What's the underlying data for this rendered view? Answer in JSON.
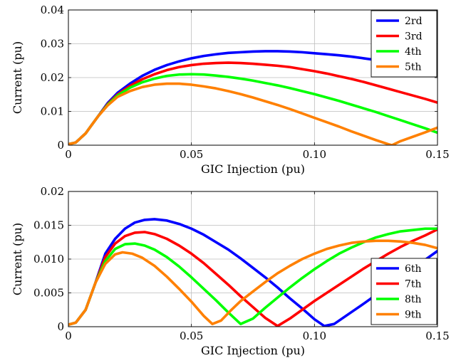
{
  "chart_data": [
    {
      "type": "line",
      "title": "",
      "xlabel": "GIC Injection (pu)",
      "ylabel": "Current (pu)",
      "xlim": [
        0,
        0.15
      ],
      "ylim": [
        0,
        0.04
      ],
      "xticks": [
        0,
        0.05,
        0.1,
        0.15
      ],
      "xtick_labels": [
        "0",
        "0.05",
        "0.10",
        "0.15"
      ],
      "yticks": [
        0,
        0.01,
        0.02,
        0.03,
        0.04
      ],
      "ytick_labels": [
        "0",
        "0.01",
        "0.02",
        "0.03",
        "0.04"
      ],
      "grid": true,
      "legend_position": "top-right",
      "series": [
        {
          "name": "2rd",
          "color": "#0000ff",
          "x": [
            0,
            0.003,
            0.007,
            0.012,
            0.016,
            0.02,
            0.025,
            0.03,
            0.035,
            0.04,
            0.045,
            0.05,
            0.055,
            0.06,
            0.065,
            0.07,
            0.075,
            0.08,
            0.085,
            0.09,
            0.095,
            0.1,
            0.105,
            0.11,
            0.115,
            0.12,
            0.125,
            0.13
          ],
          "y": [
            0.0003,
            0.0008,
            0.0035,
            0.0085,
            0.0125,
            0.0155,
            0.0182,
            0.0205,
            0.0223,
            0.0237,
            0.0248,
            0.0257,
            0.0264,
            0.0269,
            0.0273,
            0.0275,
            0.0277,
            0.0278,
            0.0278,
            0.0277,
            0.0275,
            0.0272,
            0.0269,
            0.0266,
            0.0262,
            0.0257,
            0.0252,
            0.0246
          ]
        },
        {
          "name": "3rd",
          "color": "#ff0000",
          "x": [
            0,
            0.003,
            0.007,
            0.012,
            0.016,
            0.02,
            0.025,
            0.03,
            0.035,
            0.04,
            0.045,
            0.05,
            0.055,
            0.06,
            0.065,
            0.07,
            0.075,
            0.08,
            0.085,
            0.09,
            0.095,
            0.1,
            0.105,
            0.11,
            0.115,
            0.12,
            0.125,
            0.13,
            0.135,
            0.14,
            0.145,
            0.15
          ],
          "y": [
            0.0003,
            0.0008,
            0.0035,
            0.0085,
            0.0122,
            0.015,
            0.0175,
            0.0195,
            0.021,
            0.0222,
            0.0231,
            0.0237,
            0.0241,
            0.0243,
            0.0244,
            0.0243,
            0.0241,
            0.0238,
            0.0235,
            0.0231,
            0.0225,
            0.0219,
            0.0212,
            0.0204,
            0.0196,
            0.0187,
            0.0177,
            0.0167,
            0.0157,
            0.0147,
            0.0137,
            0.0126
          ]
        },
        {
          "name": "4th",
          "color": "#00ff00",
          "x": [
            0,
            0.003,
            0.007,
            0.012,
            0.016,
            0.02,
            0.025,
            0.03,
            0.035,
            0.04,
            0.045,
            0.05,
            0.055,
            0.06,
            0.065,
            0.07,
            0.075,
            0.08,
            0.085,
            0.09,
            0.095,
            0.1,
            0.105,
            0.11,
            0.115,
            0.12,
            0.125,
            0.13,
            0.135,
            0.14,
            0.145,
            0.15
          ],
          "y": [
            0.0003,
            0.0008,
            0.0035,
            0.0085,
            0.012,
            0.0147,
            0.017,
            0.0186,
            0.0197,
            0.0205,
            0.0209,
            0.021,
            0.0209,
            0.0206,
            0.0202,
            0.0197,
            0.0191,
            0.0184,
            0.0177,
            0.0169,
            0.016,
            0.0151,
            0.0141,
            0.0131,
            0.012,
            0.0109,
            0.0098,
            0.0086,
            0.0074,
            0.0062,
            0.005,
            0.0037
          ]
        },
        {
          "name": "5th",
          "color": "#ff8000",
          "x": [
            0,
            0.003,
            0.007,
            0.012,
            0.016,
            0.02,
            0.025,
            0.03,
            0.035,
            0.04,
            0.045,
            0.05,
            0.055,
            0.06,
            0.065,
            0.07,
            0.075,
            0.08,
            0.085,
            0.09,
            0.095,
            0.1,
            0.105,
            0.11,
            0.115,
            0.12,
            0.125,
            0.13,
            0.1315,
            0.135,
            0.14,
            0.145,
            0.15
          ],
          "y": [
            0.0003,
            0.0008,
            0.0035,
            0.0085,
            0.0118,
            0.0143,
            0.016,
            0.0172,
            0.0179,
            0.0182,
            0.0182,
            0.0179,
            0.0174,
            0.0168,
            0.016,
            0.0151,
            0.0141,
            0.013,
            0.0119,
            0.0107,
            0.0094,
            0.0081,
            0.0068,
            0.0055,
            0.0041,
            0.0028,
            0.0015,
            0.0003,
            0.0,
            0.0012,
            0.0025,
            0.0038,
            0.0052
          ]
        }
      ]
    },
    {
      "type": "line",
      "title": "",
      "xlabel": "GIC Injection (pu)",
      "ylabel": "Current (pu)",
      "xlim": [
        0,
        0.15
      ],
      "ylim": [
        0,
        0.02
      ],
      "xticks": [
        0,
        0.05,
        0.1,
        0.15
      ],
      "xtick_labels": [
        "0",
        "0.05",
        "0.10",
        "0.15"
      ],
      "yticks": [
        0,
        0.005,
        0.01,
        0.015,
        0.02
      ],
      "ytick_labels": [
        "0",
        "0.005",
        "0.010",
        "0.015",
        "0.02"
      ],
      "grid": true,
      "legend_position": "bottom-right",
      "series": [
        {
          "name": "6th",
          "color": "#0000ff",
          "x": [
            0,
            0.003,
            0.007,
            0.011,
            0.015,
            0.019,
            0.023,
            0.027,
            0.031,
            0.035,
            0.04,
            0.045,
            0.05,
            0.055,
            0.06,
            0.065,
            0.07,
            0.075,
            0.08,
            0.085,
            0.09,
            0.095,
            0.1,
            0.104,
            0.108,
            0.112,
            0.116,
            0.12,
            0.125,
            0.13,
            0.135,
            0.14,
            0.145,
            0.15
          ],
          "y": [
            0.0003,
            0.0006,
            0.0025,
            0.0065,
            0.0108,
            0.013,
            0.0145,
            0.0154,
            0.0158,
            0.0159,
            0.0157,
            0.0152,
            0.0145,
            0.0136,
            0.0125,
            0.0114,
            0.0101,
            0.0087,
            0.0073,
            0.0058,
            0.0042,
            0.0027,
            0.0011,
            0.0001,
            0.0004,
            0.0014,
            0.0024,
            0.0034,
            0.0047,
            0.006,
            0.0073,
            0.0086,
            0.0099,
            0.0112
          ]
        },
        {
          "name": "7th",
          "color": "#ff0000",
          "x": [
            0,
            0.003,
            0.007,
            0.011,
            0.015,
            0.019,
            0.023,
            0.027,
            0.031,
            0.035,
            0.04,
            0.045,
            0.05,
            0.055,
            0.06,
            0.065,
            0.07,
            0.075,
            0.08,
            0.085,
            0.09,
            0.095,
            0.1,
            0.105,
            0.11,
            0.115,
            0.12,
            0.125,
            0.13,
            0.135,
            0.14,
            0.145,
            0.15
          ],
          "y": [
            0.0003,
            0.0006,
            0.0025,
            0.0065,
            0.0103,
            0.0123,
            0.0134,
            0.0139,
            0.014,
            0.0137,
            0.013,
            0.012,
            0.0108,
            0.0094,
            0.0078,
            0.0062,
            0.0045,
            0.0029,
            0.0013,
            0.0001,
            0.0012,
            0.0025,
            0.0038,
            0.005,
            0.0062,
            0.0074,
            0.0086,
            0.0097,
            0.0108,
            0.0118,
            0.0127,
            0.0135,
            0.0144
          ]
        },
        {
          "name": "8th",
          "color": "#00ff00",
          "x": [
            0,
            0.003,
            0.007,
            0.011,
            0.015,
            0.019,
            0.023,
            0.027,
            0.031,
            0.035,
            0.04,
            0.045,
            0.05,
            0.055,
            0.06,
            0.065,
            0.07,
            0.075,
            0.08,
            0.085,
            0.09,
            0.095,
            0.1,
            0.105,
            0.11,
            0.115,
            0.12,
            0.125,
            0.13,
            0.135,
            0.14,
            0.145,
            0.15
          ],
          "y": [
            0.0003,
            0.0006,
            0.0025,
            0.0065,
            0.0097,
            0.0115,
            0.0122,
            0.0123,
            0.012,
            0.0114,
            0.0103,
            0.0089,
            0.0073,
            0.0056,
            0.0039,
            0.0021,
            0.0004,
            0.0012,
            0.0028,
            0.0043,
            0.0058,
            0.0072,
            0.0085,
            0.0097,
            0.0108,
            0.0117,
            0.0125,
            0.0132,
            0.0137,
            0.0141,
            0.0143,
            0.0145,
            0.0145
          ]
        },
        {
          "name": "9th",
          "color": "#ff8000",
          "x": [
            0,
            0.003,
            0.007,
            0.011,
            0.015,
            0.019,
            0.022,
            0.026,
            0.03,
            0.035,
            0.04,
            0.045,
            0.05,
            0.055,
            0.0585,
            0.062,
            0.066,
            0.07,
            0.075,
            0.08,
            0.085,
            0.09,
            0.095,
            0.1,
            0.105,
            0.11,
            0.115,
            0.12,
            0.125,
            0.13,
            0.135,
            0.14,
            0.145,
            0.15
          ],
          "y": [
            0.0003,
            0.0006,
            0.0025,
            0.0065,
            0.0093,
            0.0107,
            0.011,
            0.0108,
            0.0102,
            0.009,
            0.0074,
            0.0056,
            0.0037,
            0.0016,
            0.0004,
            0.0009,
            0.0024,
            0.0038,
            0.0052,
            0.0066,
            0.0079,
            0.009,
            0.01,
            0.0108,
            0.0115,
            0.012,
            0.0124,
            0.0126,
            0.0127,
            0.0127,
            0.0126,
            0.0124,
            0.0121,
            0.0116
          ]
        }
      ]
    }
  ]
}
